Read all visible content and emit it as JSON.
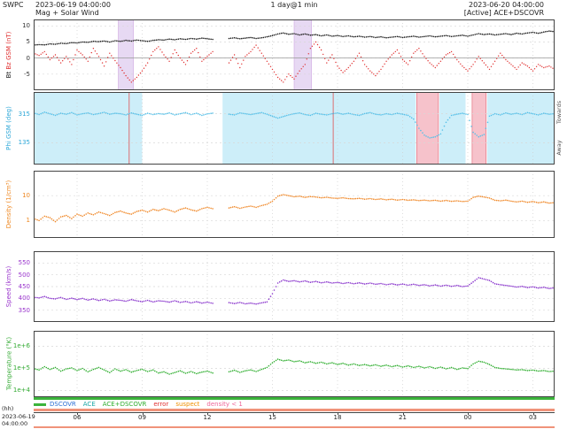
{
  "header": {
    "app": "SWPC",
    "start_datetime": "2023-06-19 04:00:00",
    "plot_title": "Mag + Solar Wind",
    "resolution": "1 day@1 min",
    "end_datetime": "2023-06-20 04:00:00",
    "status": "[Active] ACE+DSCOVR"
  },
  "xaxis": {
    "unit_label": "(hh)",
    "start_date": "2023-06-19",
    "start_time": "04:00:00",
    "hours_span": 24,
    "ticks": [
      {
        "t": 2,
        "label": "06"
      },
      {
        "t": 5,
        "label": "09"
      },
      {
        "t": 8,
        "label": "12"
      },
      {
        "t": 11,
        "label": "15"
      },
      {
        "t": 14,
        "label": "18"
      },
      {
        "t": 17,
        "label": "21"
      },
      {
        "t": 20,
        "label": "00"
      },
      {
        "t": 23,
        "label": "03"
      }
    ]
  },
  "legend": {
    "source_bar_color": "#3cb43c",
    "flag_bar_color": "#f0937a",
    "items": [
      {
        "label": "DSCOVR",
        "color": "#2b6fd4"
      },
      {
        "label": "ACE",
        "color": "#1aa7a7"
      },
      {
        "label": "ACE+DSCOVR",
        "color": "#2fae2f"
      },
      {
        "label": "error",
        "color": "#e03030"
      },
      {
        "label": "suspect",
        "color": "#f09000"
      },
      {
        "label": "density < 1",
        "color": "#ee6699"
      }
    ]
  },
  "chart_data": {
    "type": "scatter",
    "x_unit": "hours since 2023-06-19 04:00 UT",
    "x_step": 0.25,
    "xlim": [
      0,
      24
    ],
    "panels": [
      {
        "id": "mag",
        "ylabel_bt": "Bt",
        "ylabel_bz": "Bz GSM (nT)",
        "axis_color": "#333333",
        "ylim": [
          -10,
          12
        ],
        "log": false,
        "zero_line": 0,
        "yticks": [
          {
            "v": 10,
            "label": "10"
          },
          {
            "v": 5,
            "label": "5"
          },
          {
            "v": 0,
            "label": "0"
          },
          {
            "v": -5,
            "label": "-5"
          }
        ],
        "bands": [
          {
            "x0": 3.9,
            "x1": 4.6,
            "color": "#e7d9f3",
            "stroke": "#d0a8e0"
          },
          {
            "x0": 12.0,
            "x1": 12.8,
            "color": "#e7d9f3",
            "stroke": "#d0a8e0"
          }
        ],
        "series": [
          {
            "name": "Bt",
            "color": "#1a1a1a",
            "dot_r": 0.8,
            "values": [
              4.0,
              4.2,
              4.1,
              4.4,
              4.3,
              4.6,
              4.5,
              4.8,
              4.7,
              5.0,
              4.9,
              5.2,
              5.1,
              5.3,
              5.0,
              5.4,
              5.2,
              5.5,
              5.3,
              5.6,
              5.4,
              5.2,
              5.5,
              5.7,
              5.6,
              5.9,
              5.7,
              6.0,
              5.8,
              6.1,
              5.9,
              6.2,
              6.0,
              5.8,
              null,
              null,
              6.1,
              6.3,
              6.0,
              6.2,
              6.4,
              6.1,
              6.3,
              6.6,
              7.0,
              7.5,
              7.8,
              7.4,
              7.6,
              7.2,
              7.5,
              7.1,
              7.3,
              6.9,
              7.2,
              6.8,
              7.0,
              6.7,
              6.9,
              6.6,
              6.8,
              6.5,
              6.7,
              6.4,
              6.6,
              6.3,
              6.5,
              6.7,
              6.4,
              6.6,
              6.8,
              6.5,
              6.7,
              6.9,
              6.6,
              6.8,
              7.0,
              6.7,
              6.9,
              7.1,
              6.8,
              7.2,
              7.6,
              7.3,
              7.5,
              7.2,
              7.4,
              7.6,
              7.3,
              7.7,
              7.5,
              7.8,
              8.0,
              7.7,
              8.1,
              8.4,
              8.2
            ]
          },
          {
            "name": "Bz",
            "color": "#e03030",
            "dot_r": 0.7,
            "values": [
              1.5,
              0.8,
              2.0,
              -0.5,
              1.0,
              -1.5,
              0.5,
              -2.0,
              2.5,
              1.0,
              -1.0,
              3.0,
              0.5,
              -2.5,
              1.5,
              -0.8,
              -3.0,
              -5.5,
              -7.5,
              -6.0,
              -4.0,
              -1.5,
              2.0,
              3.5,
              1.0,
              -1.0,
              2.5,
              0.0,
              -2.0,
              1.5,
              3.0,
              -1.0,
              0.5,
              2.0,
              null,
              null,
              -1.5,
              1.0,
              -3.0,
              0.5,
              2.0,
              4.0,
              1.5,
              -1.0,
              -3.5,
              -6.0,
              -7.5,
              -5.0,
              -6.5,
              -4.0,
              -2.0,
              3.0,
              5.0,
              2.5,
              -1.5,
              1.0,
              -2.5,
              -4.5,
              -3.0,
              -1.0,
              1.5,
              -2.0,
              -4.0,
              -5.5,
              -3.5,
              -1.0,
              1.0,
              2.5,
              -0.5,
              -2.0,
              1.5,
              3.0,
              0.5,
              -1.5,
              -3.0,
              -1.0,
              1.0,
              2.0,
              -0.5,
              -2.5,
              -4.0,
              -2.0,
              0.5,
              -1.5,
              -3.5,
              -1.0,
              1.5,
              -0.5,
              -2.0,
              -3.5,
              -1.5,
              -2.5,
              -4.0,
              -2.0,
              -3.0,
              -2.5,
              -3.5
            ]
          }
        ]
      },
      {
        "id": "phi",
        "ylabel": "Phi GSM (deg)",
        "axis_color": "#2fa8d8",
        "right_top": "Towards",
        "right_bottom": "Away",
        "ylim": [
          0,
          450
        ],
        "log": false,
        "yticks": [
          {
            "v": 315,
            "label": "315"
          },
          {
            "v": 135,
            "label": "135"
          }
        ],
        "bands": [
          {
            "x0": 0,
            "x1": 5.0,
            "color": "#cdeef9"
          },
          {
            "x0": 8.7,
            "x1": 17.6,
            "color": "#cdeef9"
          },
          {
            "x0": 18.7,
            "x1": 19.9,
            "color": "#cdeef9"
          },
          {
            "x0": 20.9,
            "x1": 24,
            "color": "#cdeef9"
          },
          {
            "x0": 17.65,
            "x1": 18.65,
            "color": "#f6c2cb",
            "stroke": "#e06070"
          },
          {
            "x0": 20.2,
            "x1": 20.85,
            "color": "#f6c2cb",
            "stroke": "#e06070"
          }
        ],
        "red_lines": [
          4.4,
          13.8
        ],
        "red_line_color": "#e05050",
        "series": [
          {
            "name": "Phi",
            "color": "#55c0e8",
            "dot_r": 0.8,
            "values": [
              320,
              310,
              325,
              315,
              305,
              318,
              312,
              322,
              308,
              315,
              320,
              310,
              316,
              324,
              312,
              318,
              315,
              308,
              320,
              312,
              305,
              318,
              310,
              316,
              312,
              320,
              308,
              315,
              322,
              310,
              318,
              305,
              314,
              319,
              null,
              null,
              312,
              308,
              320,
              315,
              310,
              316,
              322,
              312,
              300,
              288,
              298,
              308,
              315,
              320,
              310,
              305,
              318,
              312,
              308,
              315,
              320,
              312,
              318,
              310,
              305,
              316,
              322,
              312,
              308,
              315,
              310,
              318,
              312,
              305,
              282,
              225,
              182,
              165,
              172,
              190,
              262,
              305,
              312,
              318,
              310,
              200,
              172,
              186,
              300,
              315,
              308,
              320,
              312,
              318,
              310,
              322,
              315,
              308,
              318,
              312,
              316
            ]
          }
        ]
      },
      {
        "id": "density",
        "ylabel": "Density (1/cm³)",
        "axis_color": "#ee8822",
        "ylim": [
          0.2,
          100
        ],
        "log": true,
        "yticks": [
          {
            "v": 10,
            "label": "10"
          },
          {
            "v": 1,
            "label": "1"
          }
        ],
        "series": [
          {
            "name": "Density",
            "color": "#f08828",
            "dot_r": 0.8,
            "values": [
              1.2,
              1.0,
              1.5,
              1.3,
              0.9,
              1.4,
              1.6,
              1.2,
              1.8,
              1.5,
              2.0,
              1.7,
              2.2,
              1.9,
              1.6,
              2.1,
              2.4,
              2.0,
              1.8,
              2.3,
              2.6,
              2.2,
              2.8,
              2.5,
              3.0,
              2.6,
              2.2,
              2.8,
              3.2,
              2.7,
              2.4,
              3.0,
              3.4,
              3.0,
              null,
              null,
              3.2,
              3.6,
              3.1,
              3.5,
              3.8,
              3.4,
              4.0,
              4.5,
              6.0,
              9.5,
              11.0,
              10.0,
              9.0,
              9.5,
              8.5,
              9.2,
              8.8,
              8.2,
              8.6,
              8.0,
              7.8,
              8.2,
              7.6,
              7.4,
              7.8,
              7.2,
              7.6,
              7.0,
              7.4,
              6.8,
              7.2,
              6.6,
              7.0,
              6.5,
              6.8,
              6.3,
              6.6,
              6.2,
              6.5,
              6.0,
              6.4,
              5.9,
              6.2,
              5.8,
              6.0,
              8.5,
              9.5,
              8.8,
              8.0,
              6.5,
              6.2,
              6.6,
              6.0,
              5.6,
              6.0,
              5.4,
              5.8,
              5.2,
              5.6,
              5.0,
              5.3
            ]
          }
        ]
      },
      {
        "id": "speed",
        "ylabel": "Speed (km/s)",
        "axis_color": "#9933cc",
        "ylim": [
          300,
          600
        ],
        "log": false,
        "yticks": [
          {
            "v": 550,
            "label": "550"
          },
          {
            "v": 500,
            "label": "500"
          },
          {
            "v": 450,
            "label": "450"
          },
          {
            "v": 400,
            "label": "400"
          },
          {
            "v": 350,
            "label": "350"
          }
        ],
        "series": [
          {
            "name": "Speed",
            "color": "#8833cc",
            "dot_r": 0.8,
            "values": [
              405,
              402,
              408,
              400,
              398,
              404,
              396,
              401,
              395,
              400,
              393,
              398,
              391,
              396,
              389,
              394,
              392,
              388,
              395,
              390,
              386,
              392,
              385,
              390,
              388,
              384,
              390,
              383,
              387,
              381,
              386,
              380,
              384,
              379,
              null,
              null,
              382,
              378,
              383,
              377,
              380,
              376,
              381,
              385,
              420,
              465,
              478,
              472,
              475,
              470,
              474,
              468,
              472,
              466,
              470,
              465,
              468,
              463,
              467,
              462,
              466,
              461,
              465,
              460,
              463,
              458,
              462,
              457,
              461,
              456,
              460,
              455,
              458,
              453,
              457,
              452,
              456,
              451,
              455,
              450,
              453,
              470,
              488,
              482,
              476,
              462,
              458,
              455,
              452,
              448,
              451,
              446,
              449,
              444,
              447,
              442,
              445
            ]
          }
        ]
      },
      {
        "id": "temp",
        "ylabel": "Temperature (°K)",
        "axis_color": "#33aa33",
        "ylim": [
          5000,
          5000000
        ],
        "log": true,
        "yticks": [
          {
            "v": 1000000,
            "label": "1e+6"
          },
          {
            "v": 100000,
            "label": "1e+5"
          },
          {
            "v": 10000,
            "label": "1e+4"
          }
        ],
        "series": [
          {
            "name": "Temperature",
            "color": "#2fae2f",
            "dot_r": 0.8,
            "values": [
              100000.0,
              85000.0,
              120000.0,
              90000.0,
              110000.0,
              75000.0,
              95000.0,
              105000.0,
              80000.0,
              100000.0,
              70000.0,
              90000.0,
              110000.0,
              85000.0,
              65000.0,
              95000.0,
              75000.0,
              88000.0,
              68000.0,
              80000.0,
              92000.0,
              72000.0,
              85000.0,
              62000.0,
              70000.0,
              55000.0,
              65000.0,
              78000.0,
              60000.0,
              72000.0,
              58000.0,
              68000.0,
              75000.0,
              62000.0,
              null,
              null,
              70000.0,
              82000.0,
              66000.0,
              78000.0,
              85000.0,
              72000.0,
              90000.0,
              110000.0,
              180000.0,
              260000.0,
              220000.0,
              240000.0,
              200000.0,
              220000.0,
              180000.0,
              200000.0,
              170000.0,
              190000.0,
              160000.0,
              180000.0,
              150000.0,
              170000.0,
              140000.0,
              160000.0,
              135000.0,
              150000.0,
              130000.0,
              145000.0,
              125000.0,
              140000.0,
              120000.0,
              135000.0,
              115000.0,
              130000.0,
              110000.0,
              125000.0,
              105000.0,
              120000.0,
              100000.0,
              115000.0,
              95000.0,
              110000.0,
              90000.0,
              105000.0,
              98000.0,
              160000.0,
              210000.0,
              190000.0,
              150000.0,
              110000.0,
              100000.0,
              95000.0,
              90000.0,
              85000.0,
              88000.0,
              80000.0,
              84000.0,
              76000.0,
              80000.0,
              72000.0,
              75000.0
            ]
          }
        ]
      }
    ]
  }
}
